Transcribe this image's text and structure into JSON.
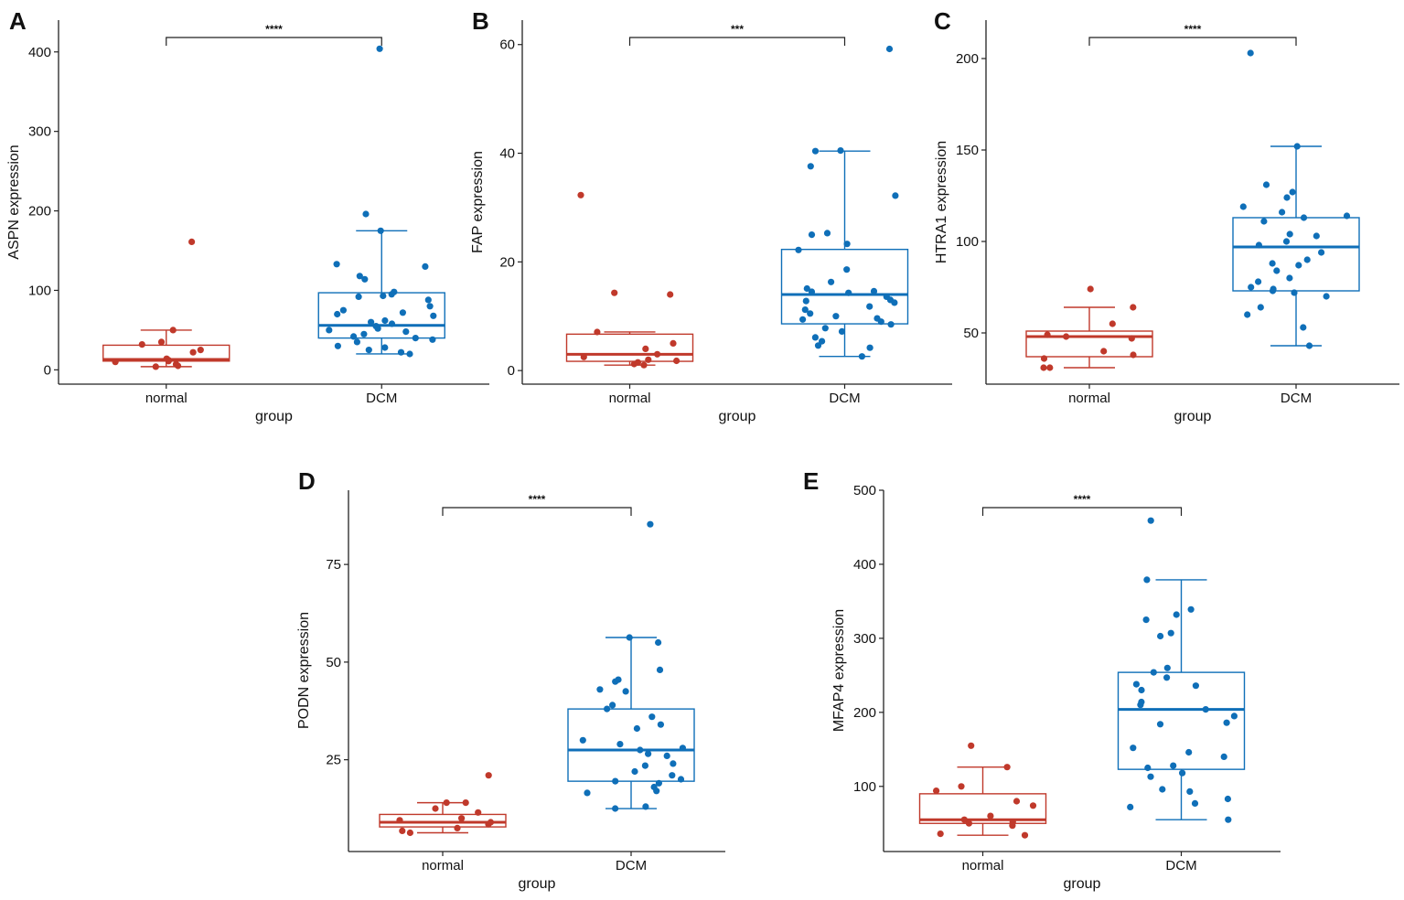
{
  "colors": {
    "normal": "#c0392b",
    "dcm": "#0f6fb8",
    "axis": "#222222"
  },
  "chart_data": [
    {
      "type": "box",
      "panel": "A",
      "xlabel": "group",
      "ylabel": "ASPN expression",
      "categories": [
        "normal",
        "DCM"
      ],
      "ylim": [
        -18,
        440
      ],
      "yticks": [
        0,
        100,
        200,
        300,
        400
      ],
      "significance": "****",
      "boxes": [
        {
          "group": "normal",
          "whisker_low": 4,
          "q1": 11,
          "median": 13,
          "q3": 31,
          "whisker_high": 50,
          "points": [
            161,
            50,
            35,
            32,
            25,
            22,
            14,
            12,
            11,
            10,
            7,
            5,
            4
          ]
        },
        {
          "group": "DCM",
          "whisker_low": 20,
          "q1": 40,
          "median": 56,
          "q3": 97,
          "whisker_high": 175,
          "points": [
            404,
            196,
            175,
            133,
            130,
            118,
            114,
            98,
            95,
            93,
            92,
            88,
            80,
            75,
            72,
            70,
            68,
            62,
            60,
            58,
            55,
            52,
            50,
            48,
            45,
            42,
            40,
            38,
            35,
            30,
            28,
            25,
            22,
            20
          ]
        }
      ]
    },
    {
      "type": "box",
      "panel": "B",
      "xlabel": "group",
      "ylabel": "FAP expression",
      "categories": [
        "normal",
        "DCM"
      ],
      "ylim": [
        -2.5,
        64.5
      ],
      "yticks": [
        0,
        20,
        40,
        60
      ],
      "significance": "***",
      "boxes": [
        {
          "group": "normal",
          "whisker_low": 1,
          "q1": 1.7,
          "median": 3,
          "q3": 6.7,
          "whisker_high": 7.1,
          "points": [
            32.3,
            14.3,
            14,
            7.1,
            5,
            4,
            3,
            2.5,
            2,
            1.8,
            1.5,
            1.2,
            1
          ]
        },
        {
          "group": "DCM",
          "whisker_low": 2.6,
          "q1": 8.6,
          "median": 14,
          "q3": 22.3,
          "whisker_high": 40.4,
          "points": [
            59.2,
            40.5,
            40.4,
            37.6,
            32.2,
            25.3,
            25,
            23.3,
            22.2,
            18.6,
            16.3,
            15.1,
            14.6,
            14.5,
            14.3,
            13.6,
            13,
            12.8,
            12.5,
            11.8,
            11.2,
            10.5,
            10,
            9.6,
            9.4,
            9,
            8.5,
            7.8,
            7.2,
            6.1,
            5.4,
            4.6,
            4.2,
            2.6
          ]
        }
      ]
    },
    {
      "type": "box",
      "panel": "C",
      "xlabel": "group",
      "ylabel": "HTRA1 expression",
      "categories": [
        "normal",
        "DCM"
      ],
      "ylim": [
        22,
        221
      ],
      "yticks": [
        50,
        100,
        150,
        200
      ],
      "significance": "****",
      "boxes": [
        {
          "group": "normal",
          "whisker_low": 31,
          "q1": 37,
          "median": 48,
          "q3": 51,
          "whisker_high": 64,
          "points": [
            74,
            64,
            55,
            49,
            48,
            47,
            40,
            38,
            36,
            31,
            31
          ]
        },
        {
          "group": "DCM",
          "whisker_low": 43,
          "q1": 73,
          "median": 97,
          "q3": 113,
          "whisker_high": 152,
          "points": [
            203,
            152,
            131,
            127,
            124,
            119,
            116,
            114,
            113,
            111,
            104,
            103,
            100,
            98,
            94,
            90,
            88,
            87,
            84,
            80,
            78,
            75,
            74,
            73,
            72,
            70,
            64,
            60,
            53,
            43
          ]
        }
      ]
    },
    {
      "type": "box",
      "panel": "D",
      "xlabel": "group",
      "ylabel": "PODN expression",
      "categories": [
        "normal",
        "DCM"
      ],
      "ylim": [
        1.5,
        94
      ],
      "yticks": [
        25,
        50,
        75
      ],
      "significance": "****",
      "boxes": [
        {
          "group": "normal",
          "whisker_low": 6.3,
          "q1": 7.8,
          "median": 9,
          "q3": 11,
          "whisker_high": 14,
          "points": [
            21,
            14,
            14,
            12.5,
            11.5,
            10,
            9.5,
            9,
            8.5,
            7.5,
            6.8,
            6.3
          ]
        },
        {
          "group": "DCM",
          "whisker_low": 12.5,
          "q1": 19.5,
          "median": 27.5,
          "q3": 38,
          "whisker_high": 56.3,
          "points": [
            85.3,
            56.3,
            55,
            48,
            45.5,
            45,
            43,
            42.5,
            39,
            38,
            36,
            34,
            33,
            30,
            29,
            28,
            27.5,
            26.5,
            26,
            24,
            23.5,
            22,
            21,
            20,
            19.5,
            19,
            18,
            17,
            16.5,
            13,
            12.5
          ]
        }
      ]
    },
    {
      "type": "box",
      "panel": "E",
      "xlabel": "group",
      "ylabel": "MFAP4 expression",
      "categories": [
        "normal",
        "DCM"
      ],
      "ylim": [
        12,
        500
      ],
      "yticks": [
        100,
        200,
        300,
        400,
        500
      ],
      "significance": "****",
      "boxes": [
        {
          "group": "normal",
          "whisker_low": 34,
          "q1": 50,
          "median": 55,
          "q3": 90,
          "whisker_high": 126,
          "points": [
            155,
            126,
            100,
            94,
            80,
            74,
            60,
            55,
            52,
            50,
            47,
            36,
            34
          ]
        },
        {
          "group": "DCM",
          "whisker_low": 55,
          "q1": 123,
          "median": 204,
          "q3": 254,
          "whisker_high": 379,
          "points": [
            459,
            379,
            339,
            332,
            325,
            307,
            303,
            260,
            254,
            247,
            238,
            236,
            230,
            214,
            210,
            204,
            195,
            186,
            184,
            152,
            146,
            140,
            128,
            125,
            118,
            113,
            96,
            93,
            83,
            77,
            72,
            55
          ]
        }
      ]
    }
  ]
}
